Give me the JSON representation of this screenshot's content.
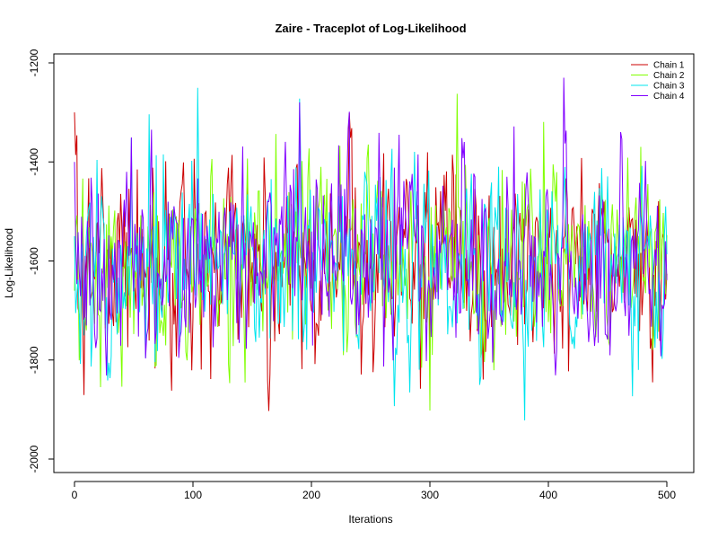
{
  "chart_data": {
    "type": "line",
    "title": "Zaire - Traceplot of Log-Likelihood",
    "xlabel": "Iterations",
    "ylabel": "Log-Likelihood",
    "xlim": [
      0,
      500
    ],
    "ylim": [
      -2000,
      -1200
    ],
    "x_ticks": [
      "0",
      "100",
      "200",
      "300",
      "400",
      "500"
    ],
    "y_ticks": [
      "-2000",
      "-1800",
      "-1600",
      "-1400",
      "-1200"
    ],
    "legend_position": "top-right",
    "grid": false,
    "n_iterations": 500,
    "series_summary": {
      "approx_mean": -1600,
      "approx_range": [
        -2000,
        -1210
      ]
    },
    "series": [
      {
        "name": "Chain 1",
        "color": "#cc0000",
        "start": -1300
      },
      {
        "name": "Chain 2",
        "color": "#80ff00",
        "start": -1660
      },
      {
        "name": "Chain 3",
        "color": "#00e5ee",
        "start": -1550
      },
      {
        "name": "Chain 4",
        "color": "#8000ff",
        "start": -1400
      }
    ]
  }
}
